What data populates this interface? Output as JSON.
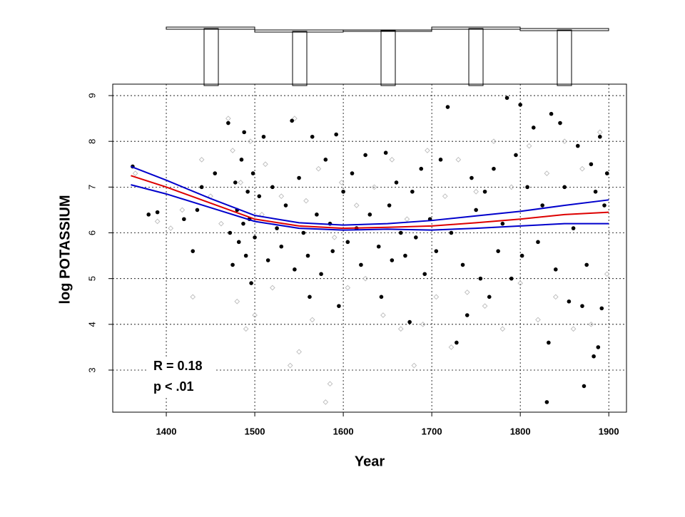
{
  "chart_data": {
    "type": "scatter",
    "x_label": "Year",
    "y_label": "log POTASSIUM",
    "annotations": [
      "R = 0.18",
      "p < .01"
    ],
    "xlim": [
      1339.5,
      1920
    ],
    "xticks": [
      1400,
      1500,
      1600,
      1700,
      1800,
      1900
    ],
    "ylim": [
      2.08,
      9.25
    ],
    "yticks": [
      3,
      4,
      5,
      6,
      7,
      8,
      9
    ],
    "grid": true,
    "series": [
      {
        "color": "#bbbbbb",
        "marker": "diamond",
        "x": [
          1365,
          1390,
          1405,
          1418,
          1430,
          1440,
          1450,
          1462,
          1470,
          1475,
          1480,
          1484,
          1490,
          1495,
          1500,
          1508,
          1512,
          1520,
          1530,
          1540,
          1545,
          1550,
          1558,
          1565,
          1572,
          1580,
          1585,
          1590,
          1598,
          1605,
          1615,
          1625,
          1635,
          1645,
          1655,
          1665,
          1672,
          1680,
          1690,
          1695,
          1705,
          1715,
          1722,
          1730,
          1740,
          1750,
          1760,
          1770,
          1780,
          1790,
          1800,
          1810,
          1820,
          1830,
          1840,
          1850,
          1860,
          1870,
          1880,
          1890,
          1898
        ],
        "values": [
          7.3,
          6.25,
          6.1,
          6.5,
          4.6,
          7.6,
          6.8,
          6.2,
          8.5,
          7.8,
          4.5,
          7.1,
          3.9,
          8.0,
          4.2,
          6.4,
          7.5,
          4.8,
          6.8,
          3.1,
          8.5,
          3.4,
          6.7,
          4.1,
          7.4,
          2.3,
          2.7,
          5.9,
          7.1,
          4.8,
          6.6,
          5.0,
          7.0,
          4.2,
          7.6,
          3.9,
          6.3,
          3.1,
          4.0,
          7.8,
          4.6,
          6.8,
          3.5,
          7.6,
          4.7,
          6.9,
          4.4,
          8.0,
          3.9,
          7.0,
          4.9,
          7.9,
          4.1,
          7.3,
          4.6,
          8.0,
          3.9,
          7.4,
          4.0,
          8.2,
          5.1
        ]
      },
      {
        "color": "#000000",
        "marker": "dot",
        "x": [
          1362,
          1380,
          1390,
          1420,
          1430,
          1435,
          1440,
          1455,
          1470,
          1472,
          1475,
          1478,
          1480,
          1482,
          1485,
          1487,
          1488,
          1490,
          1492,
          1494,
          1496,
          1498,
          1500,
          1505,
          1510,
          1515,
          1520,
          1525,
          1530,
          1535,
          1542,
          1545,
          1550,
          1555,
          1560,
          1562,
          1565,
          1570,
          1575,
          1580,
          1585,
          1588,
          1592,
          1595,
          1600,
          1605,
          1610,
          1615,
          1620,
          1625,
          1630,
          1640,
          1643,
          1648,
          1652,
          1655,
          1660,
          1665,
          1670,
          1675,
          1678,
          1682,
          1688,
          1692,
          1698,
          1705,
          1710,
          1718,
          1722,
          1728,
          1735,
          1740,
          1745,
          1750,
          1755,
          1760,
          1765,
          1770,
          1775,
          1780,
          1785,
          1790,
          1795,
          1800,
          1802,
          1808,
          1815,
          1820,
          1825,
          1830,
          1832,
          1835,
          1840,
          1845,
          1850,
          1855,
          1860,
          1865,
          1870,
          1872,
          1875,
          1880,
          1883,
          1885,
          1888,
          1890,
          1892,
          1895,
          1898
        ],
        "values": [
          7.45,
          6.4,
          6.45,
          6.3,
          5.6,
          6.5,
          7.0,
          7.3,
          8.4,
          6.0,
          5.3,
          7.1,
          6.5,
          5.8,
          7.6,
          6.2,
          8.2,
          5.5,
          6.9,
          6.3,
          4.9,
          7.3,
          5.9,
          6.8,
          8.1,
          5.4,
          7.0,
          6.1,
          5.7,
          6.6,
          8.45,
          5.2,
          7.2,
          6.0,
          5.5,
          4.6,
          8.1,
          6.4,
          5.1,
          7.6,
          6.2,
          5.6,
          8.15,
          4.4,
          6.9,
          5.8,
          7.3,
          6.1,
          5.3,
          7.7,
          6.4,
          5.7,
          4.6,
          7.75,
          6.6,
          5.4,
          7.1,
          6.0,
          5.5,
          4.05,
          6.9,
          5.9,
          7.4,
          5.1,
          6.3,
          5.6,
          7.6,
          8.75,
          6.0,
          3.6,
          5.3,
          4.2,
          7.2,
          6.5,
          5.0,
          6.9,
          4.6,
          7.4,
          5.6,
          6.2,
          8.95,
          5.0,
          7.7,
          8.8,
          5.5,
          7.0,
          8.3,
          5.8,
          6.6,
          2.3,
          3.6,
          8.6,
          5.2,
          8.4,
          7.0,
          4.5,
          6.1,
          7.9,
          4.4,
          2.65,
          5.3,
          7.5,
          3.3,
          6.9,
          3.5,
          8.1,
          4.35,
          6.6,
          7.3
        ]
      }
    ],
    "lines": {
      "x": [
        1360,
        1400,
        1450,
        1500,
        1550,
        1600,
        1650,
        1700,
        1750,
        1800,
        1850,
        1900
      ],
      "series": [
        {
          "color": "#0000cc",
          "values": [
            7.45,
            7.15,
            6.75,
            6.38,
            6.22,
            6.17,
            6.2,
            6.27,
            6.37,
            6.47,
            6.6,
            6.72
          ]
        },
        {
          "color": "#0000cc",
          "values": [
            7.05,
            6.85,
            6.55,
            6.25,
            6.1,
            6.06,
            6.08,
            6.06,
            6.1,
            6.15,
            6.2,
            6.2
          ]
        },
        {
          "color": "#dd0000",
          "values": [
            7.25,
            7.0,
            6.65,
            6.3,
            6.15,
            6.1,
            6.12,
            6.15,
            6.22,
            6.3,
            6.4,
            6.45
          ]
        }
      ]
    }
  }
}
